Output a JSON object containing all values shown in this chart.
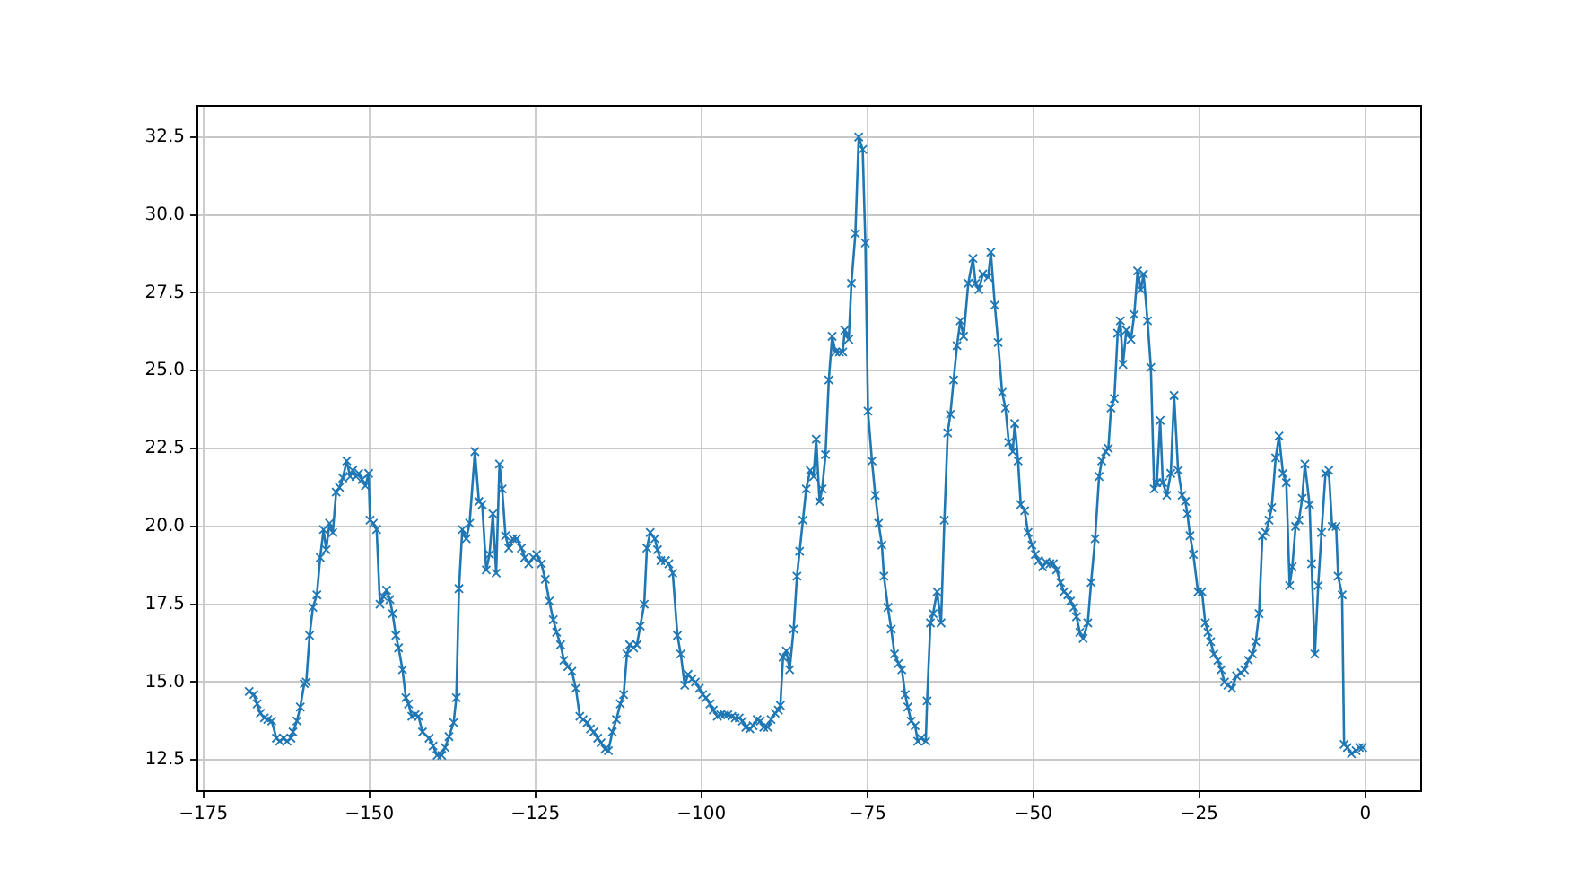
{
  "chart_data": {
    "type": "line",
    "marker": "cross",
    "line_style": "solid",
    "grid": true,
    "legend": false,
    "xlim": [
      -175.9,
      8.4
    ],
    "ylim": [
      11.5,
      33.5
    ],
    "xticks": [
      {
        "value": -175,
        "label": "−175"
      },
      {
        "value": -150,
        "label": "−150"
      },
      {
        "value": -125,
        "label": "−125"
      },
      {
        "value": -100,
        "label": "−100"
      },
      {
        "value": -75,
        "label": "−75"
      },
      {
        "value": -50,
        "label": "−50"
      },
      {
        "value": -25,
        "label": "−25"
      },
      0
    ],
    "yticks": [
      12.5,
      {
        "value": 15,
        "label": "15.0"
      },
      17.5,
      {
        "value": 20,
        "label": "20.0"
      },
      22.5,
      {
        "value": 25,
        "label": "25.0"
      },
      27.5,
      {
        "value": 30,
        "label": "30.0"
      },
      32.5
    ],
    "series": [
      {
        "color": "#1f77b4",
        "x": [
          -168.1,
          -167.4,
          -166.9,
          -166.4,
          -165.8,
          -165.3,
          -164.7,
          -164.0,
          -163.5,
          -162.9,
          -162.4,
          -161.8,
          -161.5,
          -160.9,
          -160.4,
          -159.8,
          -159.5,
          -159.0,
          -158.5,
          -157.9,
          -157.4,
          -156.9,
          -156.5,
          -156.0,
          -155.5,
          -155.0,
          -154.5,
          -154.0,
          -153.4,
          -152.9,
          -152.5,
          -152.0,
          -151.6,
          -151.1,
          -150.6,
          -150.1,
          -149.9,
          -149.4,
          -148.9,
          -148.4,
          -147.9,
          -147.4,
          -146.9,
          -146.5,
          -146.0,
          -145.6,
          -145.0,
          -144.5,
          -144.1,
          -143.6,
          -143.1,
          -142.6,
          -142.0,
          -141.0,
          -140.4,
          -139.8,
          -139.1,
          -138.6,
          -138.0,
          -137.3,
          -136.9,
          -136.5,
          -136.0,
          -135.4,
          -134.9,
          -134.1,
          -133.5,
          -133.0,
          -132.4,
          -131.9,
          -131.4,
          -130.9,
          -130.4,
          -130.0,
          -129.5,
          -129.0,
          -128.4,
          -127.8,
          -127.1,
          -126.6,
          -126.0,
          -125.3,
          -124.8,
          -124.1,
          -123.5,
          -122.9,
          -122.3,
          -121.8,
          -121.2,
          -120.7,
          -120.1,
          -119.5,
          -118.9,
          -118.3,
          -117.8,
          -117.2,
          -116.7,
          -116.2,
          -115.6,
          -115.1,
          -114.5,
          -114.0,
          -113.4,
          -112.8,
          -112.2,
          -111.7,
          -111.2,
          -110.8,
          -110.2,
          -109.7,
          -109.2,
          -108.6,
          -108.2,
          -107.7,
          -107.0,
          -106.6,
          -106.1,
          -105.4,
          -104.9,
          -104.3,
          -103.6,
          -103.1,
          -102.5,
          -102.0,
          -101.4,
          -100.9,
          -100.3,
          -99.8,
          -99.3,
          -98.7,
          -98.2,
          -97.6,
          -97.1,
          -96.5,
          -96.0,
          -95.4,
          -94.9,
          -94.3,
          -93.8,
          -93.3,
          -92.7,
          -92.2,
          -91.6,
          -91.1,
          -90.6,
          -90.0,
          -89.5,
          -88.9,
          -88.4,
          -88.1,
          -87.7,
          -87.2,
          -86.7,
          -86.1,
          -85.6,
          -85.2,
          -84.7,
          -84.2,
          -83.6,
          -83.1,
          -82.7,
          -82.2,
          -81.8,
          -81.3,
          -80.8,
          -80.3,
          -79.8,
          -79.2,
          -78.7,
          -78.4,
          -77.8,
          -77.4,
          -76.8,
          -76.3,
          -75.7,
          -75.3,
          -74.9,
          -74.3,
          -73.8,
          -73.3,
          -72.8,
          -72.5,
          -71.9,
          -71.4,
          -70.9,
          -70.3,
          -69.8,
          -69.3,
          -68.9,
          -68.4,
          -67.8,
          -67.4,
          -66.9,
          -66.2,
          -66.0,
          -65.5,
          -65.1,
          -64.5,
          -63.9,
          -63.4,
          -62.9,
          -62.5,
          -62.0,
          -61.5,
          -61.0,
          -60.5,
          -59.8,
          -59.1,
          -58.7,
          -58.2,
          -57.6,
          -56.8,
          -56.4,
          -55.8,
          -55.3,
          -54.7,
          -54.2,
          -53.7,
          -53.1,
          -52.8,
          -52.3,
          -51.9,
          -51.3,
          -50.8,
          -50.2,
          -49.7,
          -49.2,
          -48.6,
          -48.1,
          -47.5,
          -47.0,
          -46.5,
          -45.9,
          -45.4,
          -44.8,
          -44.4,
          -43.9,
          -43.5,
          -43.0,
          -42.5,
          -41.8,
          -41.3,
          -40.7,
          -40.1,
          -39.7,
          -39.1,
          -38.7,
          -38.3,
          -37.8,
          -37.3,
          -36.9,
          -36.5,
          -36.0,
          -35.3,
          -34.8,
          -34.3,
          -33.8,
          -33.4,
          -32.8,
          -32.3,
          -31.8,
          -31.4,
          -30.9,
          -30.5,
          -29.9,
          -29.3,
          -28.8,
          -28.2,
          -27.6,
          -27.1,
          -26.8,
          -26.4,
          -25.9,
          -25.2,
          -24.6,
          -24.1,
          -23.7,
          -23.3,
          -22.8,
          -22.2,
          -21.7,
          -21.2,
          -20.7,
          -20.1,
          -19.4,
          -18.7,
          -18.2,
          -17.6,
          -17.0,
          -16.5,
          -16.0,
          -15.5,
          -15.0,
          -14.5,
          -14.1,
          -13.5,
          -13.0,
          -12.4,
          -11.9,
          -11.4,
          -11.0,
          -10.5,
          -10.0,
          -9.5,
          -9.1,
          -8.4,
          -8.1,
          -7.6,
          -7.1,
          -6.6,
          -6.0,
          -5.5,
          -5.0,
          -4.4,
          -4.1,
          -3.5,
          -3.2,
          -2.7,
          -2.1,
          -1.4,
          -0.9,
          -0.4
        ],
        "values": [
          14.7,
          14.6,
          14.3,
          14.0,
          13.85,
          13.8,
          13.75,
          13.2,
          13.1,
          13.2,
          13.1,
          13.2,
          13.4,
          13.75,
          14.2,
          14.95,
          15.0,
          16.5,
          17.4,
          17.8,
          19.0,
          19.9,
          19.25,
          20.1,
          19.8,
          21.1,
          21.25,
          21.55,
          22.1,
          21.6,
          21.8,
          21.6,
          21.7,
          21.5,
          21.3,
          21.7,
          20.2,
          20.1,
          19.9,
          17.5,
          17.75,
          17.95,
          17.65,
          17.2,
          16.5,
          16.1,
          15.4,
          14.5,
          14.3,
          13.9,
          13.95,
          13.9,
          13.4,
          13.2,
          12.95,
          12.65,
          12.65,
          12.9,
          13.25,
          13.7,
          14.5,
          18.0,
          19.9,
          19.6,
          20.1,
          22.4,
          20.8,
          20.7,
          18.6,
          19.1,
          20.4,
          18.5,
          22.0,
          21.2,
          19.7,
          19.3,
          19.6,
          19.6,
          19.3,
          19.0,
          18.8,
          19.0,
          19.1,
          18.8,
          18.3,
          17.6,
          17.0,
          16.6,
          16.2,
          15.7,
          15.5,
          15.35,
          14.8,
          13.9,
          13.8,
          13.7,
          13.5,
          13.4,
          13.2,
          13.05,
          12.85,
          12.8,
          13.4,
          13.8,
          14.3,
          14.6,
          15.9,
          16.2,
          16.1,
          16.2,
          16.8,
          17.5,
          19.3,
          19.8,
          19.6,
          19.25,
          18.9,
          18.9,
          18.8,
          18.5,
          16.5,
          15.9,
          14.9,
          15.25,
          15.1,
          15.0,
          14.8,
          14.6,
          14.5,
          14.3,
          14.1,
          13.9,
          13.95,
          13.95,
          13.95,
          13.9,
          13.85,
          13.85,
          13.75,
          13.55,
          13.5,
          13.6,
          13.8,
          13.75,
          13.55,
          13.55,
          13.8,
          14.0,
          14.1,
          14.25,
          15.8,
          16.0,
          15.4,
          16.7,
          18.4,
          19.2,
          20.2,
          21.2,
          21.8,
          21.6,
          22.8,
          20.8,
          21.2,
          22.3,
          24.7,
          26.1,
          25.6,
          25.6,
          25.6,
          26.3,
          26.0,
          27.8,
          29.4,
          32.5,
          32.1,
          29.1,
          23.7,
          22.1,
          21.0,
          20.1,
          19.4,
          18.4,
          17.4,
          16.7,
          15.9,
          15.6,
          15.4,
          14.6,
          14.2,
          13.75,
          13.6,
          13.1,
          13.2,
          13.1,
          14.4,
          16.9,
          17.2,
          17.9,
          16.9,
          20.2,
          23.0,
          23.6,
          24.7,
          25.8,
          26.6,
          26.1,
          27.8,
          28.6,
          27.8,
          27.6,
          28.1,
          28.0,
          28.8,
          27.1,
          25.9,
          24.3,
          23.8,
          22.7,
          22.4,
          23.3,
          22.1,
          20.7,
          20.5,
          19.8,
          19.4,
          19.1,
          18.9,
          18.7,
          18.85,
          18.8,
          18.8,
          18.6,
          18.2,
          17.9,
          17.8,
          17.6,
          17.4,
          17.1,
          16.6,
          16.4,
          16.9,
          18.2,
          19.6,
          21.6,
          22.1,
          22.4,
          22.5,
          23.8,
          24.1,
          26.2,
          26.6,
          25.2,
          26.3,
          26.0,
          26.8,
          28.2,
          27.6,
          28.1,
          26.6,
          25.1,
          21.2,
          21.4,
          23.4,
          21.4,
          21.0,
          21.7,
          24.2,
          21.8,
          21.0,
          20.8,
          20.4,
          19.7,
          19.1,
          17.9,
          17.9,
          16.9,
          16.6,
          16.3,
          15.9,
          15.7,
          15.4,
          15.0,
          14.9,
          14.8,
          15.2,
          15.3,
          15.4,
          15.7,
          15.9,
          16.3,
          17.2,
          19.7,
          19.8,
          20.2,
          20.6,
          22.2,
          22.9,
          21.7,
          21.4,
          18.1,
          18.7,
          20.0,
          20.2,
          20.9,
          22.0,
          20.7,
          18.8,
          15.9,
          18.1,
          19.8,
          21.7,
          21.8,
          20.0,
          20.0,
          18.4,
          17.8,
          13.0,
          12.9,
          12.7,
          12.8,
          12.9,
          12.9
        ]
      }
    ]
  }
}
